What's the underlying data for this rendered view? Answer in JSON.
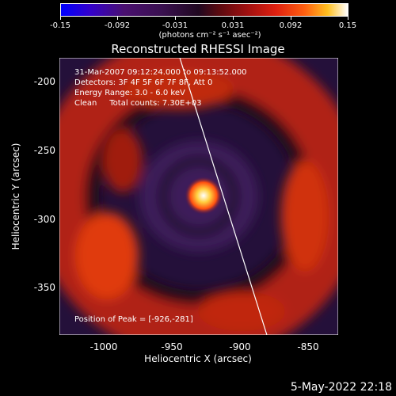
{
  "colorbar": {
    "ticks": [
      "-0.15",
      "-0.092",
      "-0.031",
      "0.031",
      "0.092",
      "0.15"
    ],
    "units": "(photons cm⁻² s⁻¹ asec⁻²)"
  },
  "title": "Reconstructed RHESSI Image",
  "annotations": {
    "time": "31-Mar-2007 09:12:24.000 to 09:13:52.000",
    "detectors": "Detectors: 3F 4F 5F 6F 7F 8F, Att 0",
    "energy": "Energy Range: 3.0 - 6.0 keV",
    "clean": "Clean     Total counts: 7.30E+03",
    "peak": "Position of Peak = [-926,-281]"
  },
  "axes": {
    "xlabel": "Heliocentric X (arcsec)",
    "ylabel": "Heliocentric Y (arcsec)",
    "xticks": [
      "-1000",
      "-950",
      "-900",
      "-850"
    ],
    "yticks": [
      "-200",
      "-250",
      "-300",
      "-350"
    ]
  },
  "datestamp": "5-May-2022 22:18"
}
